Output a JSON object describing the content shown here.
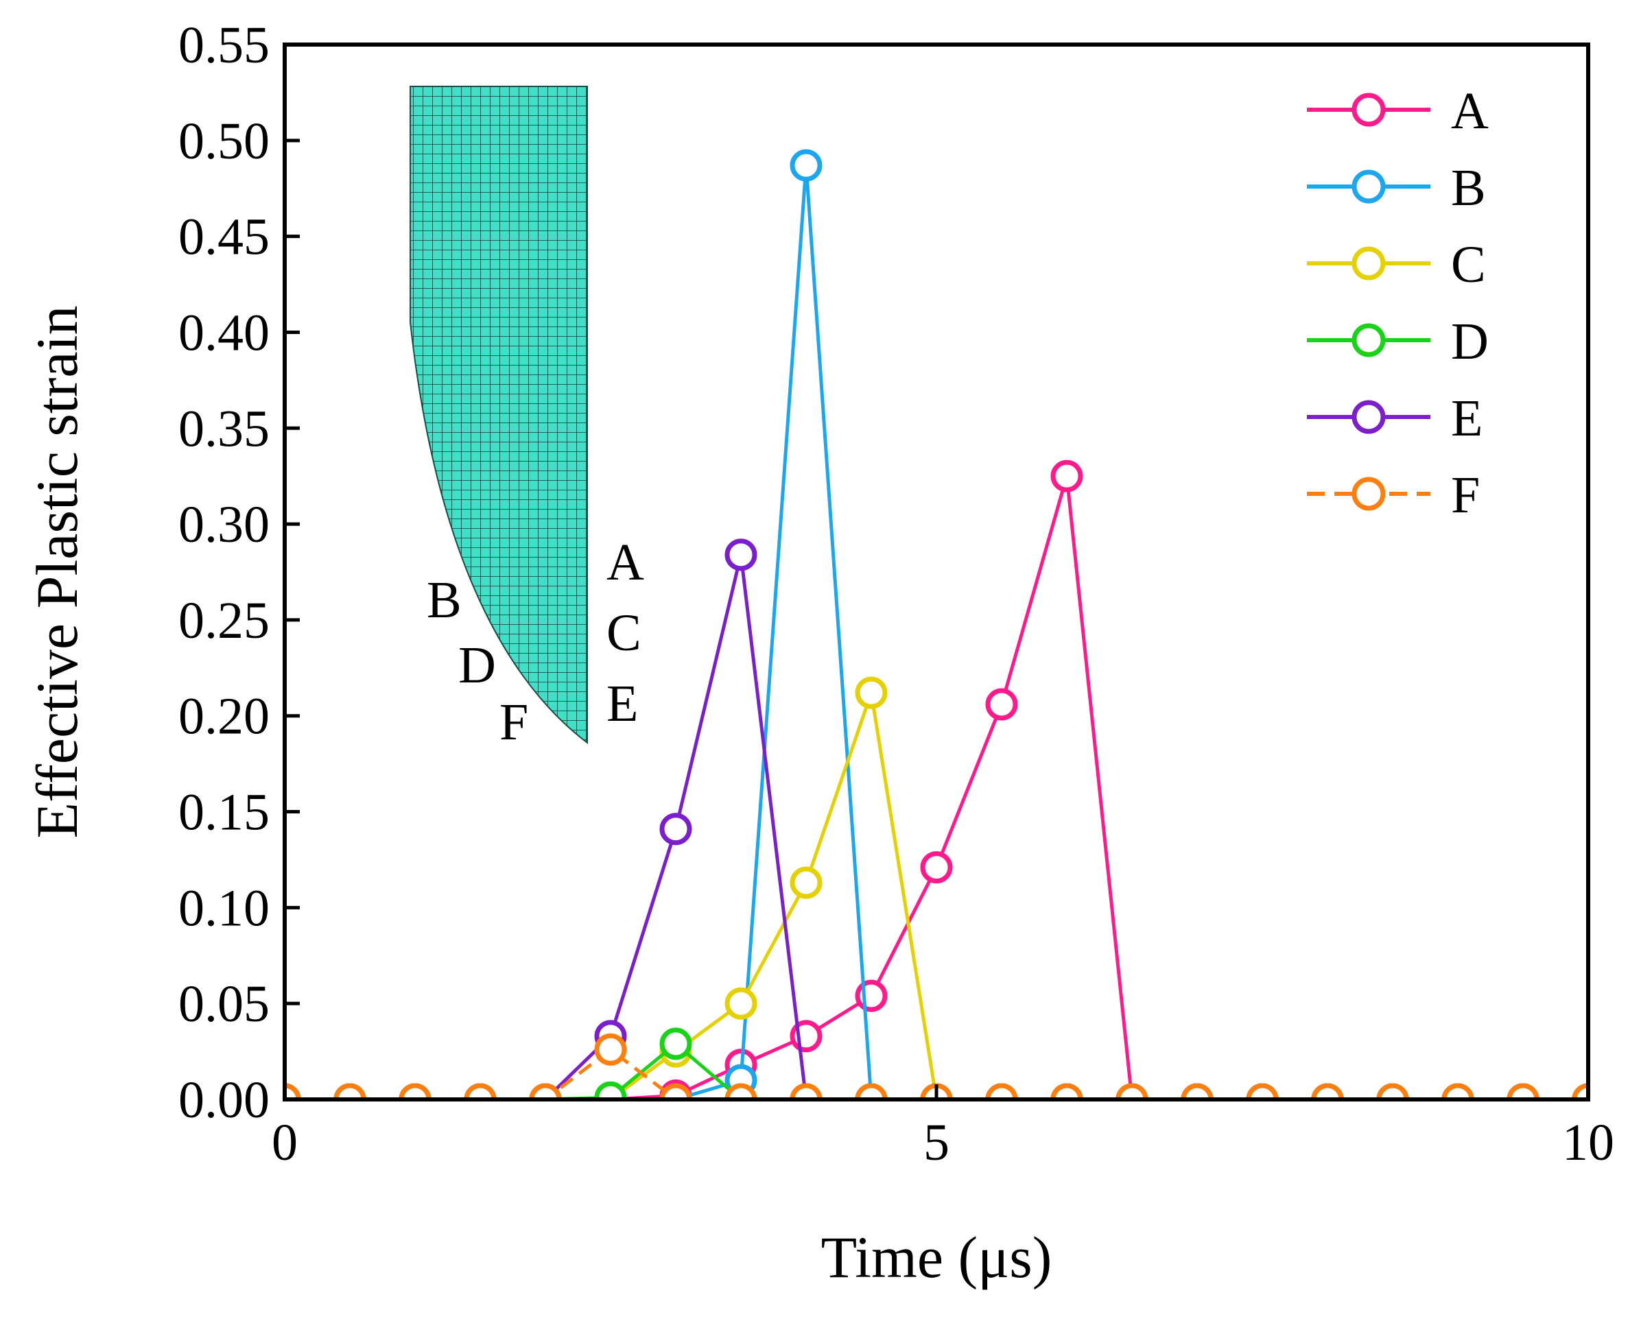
{
  "chart_data": {
    "type": "line",
    "xlabel": "Time (μs)",
    "ylabel": "Effective Plastic strain",
    "xlim": [
      0,
      10
    ],
    "ylim": [
      0,
      0.55
    ],
    "xticks": [
      "0",
      "5",
      "10"
    ],
    "yticks": [
      "0.00",
      "0.05",
      "0.10",
      "0.15",
      "0.20",
      "0.25",
      "0.30",
      "0.35",
      "0.40",
      "0.45",
      "0.50",
      "0.55"
    ],
    "legend_position": "top-right",
    "series": [
      {
        "name": "A",
        "color": "#FF1A8C",
        "dash": false,
        "x": [
          0,
          0.5,
          1,
          1.5,
          2,
          2.5,
          3,
          3.5,
          4,
          4.5,
          5,
          5.5,
          6,
          6.5,
          7,
          7.5,
          8,
          8.5,
          9,
          9.5,
          10
        ],
        "y": [
          0,
          0,
          0,
          0,
          0,
          0,
          0.002,
          0.018,
          0.033,
          0.054,
          0.121,
          0.206,
          0.325,
          0,
          0,
          0,
          0,
          0,
          0,
          0,
          0
        ]
      },
      {
        "name": "B",
        "color": "#1AA7F0",
        "dash": false,
        "x": [
          0,
          0.5,
          1,
          1.5,
          2,
          2.5,
          3,
          3.5,
          4,
          4.5,
          5,
          5.5,
          6,
          6.5,
          7,
          7.5,
          8,
          8.5,
          9,
          9.5,
          10
        ],
        "y": [
          0,
          0,
          0,
          0,
          0,
          0,
          0,
          0.01,
          0.487,
          0,
          0,
          0,
          0,
          0,
          0,
          0,
          0,
          0,
          0,
          0,
          0
        ]
      },
      {
        "name": "C",
        "color": "#E5D000",
        "dash": false,
        "x": [
          0,
          0.5,
          1,
          1.5,
          2,
          2.5,
          3,
          3.5,
          4,
          4.5,
          5,
          5.5,
          6,
          6.5,
          7,
          7.5,
          8,
          8.5,
          9,
          9.5,
          10
        ],
        "y": [
          0,
          0,
          0,
          0,
          0,
          0,
          0.025,
          0.05,
          0.113,
          0.212,
          0,
          0,
          0,
          0,
          0,
          0,
          0,
          0,
          0,
          0,
          0
        ]
      },
      {
        "name": "D",
        "color": "#18D418",
        "dash": false,
        "x": [
          0,
          0.5,
          1,
          1.5,
          2,
          2.5,
          3,
          3.5,
          4,
          4.5,
          5,
          5.5,
          6,
          6.5,
          7,
          7.5,
          8,
          8.5,
          9,
          9.5,
          10
        ],
        "y": [
          0,
          0,
          0,
          0,
          0,
          0.001,
          0.029,
          0,
          0,
          0,
          0,
          0,
          0,
          0,
          0,
          0,
          0,
          0,
          0,
          0,
          0
        ]
      },
      {
        "name": "E",
        "color": "#7B1FCC",
        "dash": false,
        "x": [
          0,
          0.5,
          1,
          1.5,
          2,
          2.5,
          3,
          3.5,
          4,
          4.5,
          5,
          5.5,
          6,
          6.5,
          7,
          7.5,
          8,
          8.5,
          9,
          9.5,
          10
        ],
        "y": [
          0,
          0,
          0,
          0,
          0,
          0.033,
          0.141,
          0.284,
          0,
          0,
          0,
          0,
          0,
          0,
          0,
          0,
          0,
          0,
          0,
          0,
          0
        ]
      },
      {
        "name": "F",
        "color": "#FF7F0E",
        "dash": true,
        "x": [
          0,
          0.5,
          1,
          1.5,
          2,
          2.5,
          3,
          3.5,
          4,
          4.5,
          5,
          5.5,
          6,
          6.5,
          7,
          7.5,
          8,
          8.5,
          9,
          9.5,
          10
        ],
        "y": [
          0,
          0,
          0,
          0,
          0,
          0.026,
          0,
          0,
          0,
          0,
          0,
          0,
          0,
          0,
          0,
          0,
          0,
          0,
          0,
          0,
          0
        ]
      }
    ],
    "inset": {
      "description_labels": {
        "left": [
          "B",
          "D",
          "F"
        ],
        "right": [
          "A",
          "C",
          "E"
        ]
      },
      "mesh_color": "#40E0C8"
    }
  }
}
